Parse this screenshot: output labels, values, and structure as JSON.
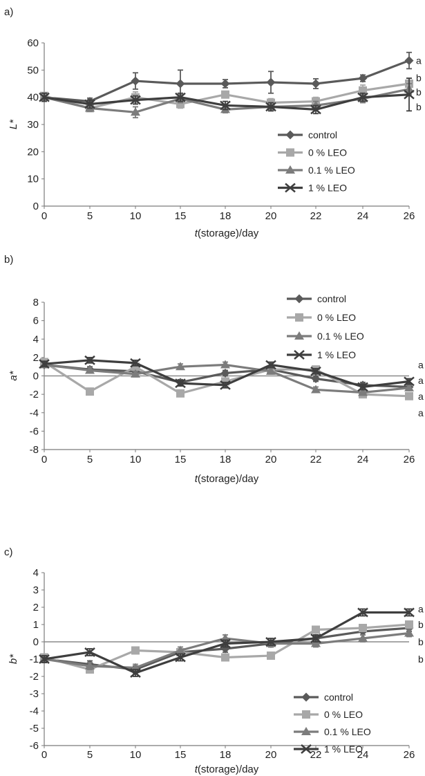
{
  "colors": {
    "control": "#5a5a5a",
    "leo0": "#a8a8a8",
    "leo01": "#7c7c7c",
    "leo1": "#3e3e3e",
    "axis": "#7a7a7a",
    "zero_line": "#8a8a8a"
  },
  "chart_data": [
    {
      "type": "line",
      "panel_label": "a)",
      "xlabel_italic": "t",
      "xlabel_rest": "(storage)/day",
      "ylabel": "L*",
      "x": [
        0,
        5,
        10,
        15,
        18,
        20,
        22,
        24,
        26
      ],
      "x_tick_labels": [
        "0",
        "5",
        "10",
        "15",
        "18",
        "20",
        "22",
        "24",
        "26"
      ],
      "ylim": [
        0,
        60
      ],
      "y_ticks": [
        0,
        10,
        20,
        30,
        40,
        50,
        60
      ],
      "zero_line": false,
      "grid": false,
      "legend_position": "lower-right",
      "series": [
        {
          "name": "control",
          "marker": "diamond",
          "color_key": "control",
          "values": [
            40,
            38.5,
            46,
            45,
            45,
            45.5,
            45,
            47,
            53.5
          ],
          "errors": [
            1.5,
            1.2,
            3,
            5,
            1.5,
            4,
            1.8,
            1.2,
            3
          ]
        },
        {
          "name": "0 % LEO",
          "marker": "square",
          "color_key": "leo0",
          "values": [
            40.5,
            36,
            40,
            37.5,
            41,
            38,
            38.5,
            42.5,
            45
          ],
          "errors": [
            1,
            1,
            2,
            1.5,
            1.2,
            1.5,
            1.5,
            2,
            2
          ]
        },
        {
          "name": "0.1 % LEO",
          "marker": "triangle",
          "color_key": "leo01",
          "values": [
            40,
            36,
            34.5,
            39.5,
            35.5,
            36.5,
            37,
            39.5,
            43
          ],
          "errors": [
            1.5,
            1.2,
            2,
            1.5,
            1.2,
            1.5,
            1.5,
            1.5,
            2
          ]
        },
        {
          "name": "1 % LEO",
          "marker": "x",
          "color_key": "leo1",
          "values": [
            40,
            37.5,
            39,
            40,
            37,
            36.5,
            35.5,
            40,
            41
          ],
          "errors": [
            1.5,
            1.5,
            1.5,
            1.5,
            1.5,
            1.5,
            1.5,
            1.5,
            6
          ]
        }
      ],
      "right_letters": [
        {
          "text": "a",
          "value": 53.5
        },
        {
          "text": "b",
          "value": 47.2
        },
        {
          "text": "b",
          "value": 42
        },
        {
          "text": "b",
          "value": 36.5
        }
      ]
    },
    {
      "type": "line",
      "panel_label": "b)",
      "xlabel_italic": "t",
      "xlabel_rest": "(storage)/day",
      "ylabel": "a*",
      "x": [
        0,
        5,
        10,
        15,
        18,
        20,
        22,
        24,
        26
      ],
      "x_tick_labels": [
        "0",
        "5",
        "10",
        "15",
        "18",
        "20",
        "22",
        "24",
        "26"
      ],
      "ylim": [
        -8,
        8
      ],
      "y_ticks": [
        -8,
        -6,
        -4,
        -2,
        0,
        2,
        4,
        6,
        8
      ],
      "zero_line": true,
      "grid": false,
      "legend_position": "upper-right",
      "series": [
        {
          "name": "control",
          "marker": "diamond",
          "color_key": "control",
          "values": [
            1.2,
            0.7,
            0.5,
            -0.7,
            0.3,
            0.7,
            -0.3,
            -1.0,
            -1.2
          ],
          "errors": [
            0.3,
            0.3,
            0.3,
            0.3,
            0.3,
            0.3,
            0.3,
            0.3,
            0.3
          ]
        },
        {
          "name": "0 % LEO",
          "marker": "square",
          "color_key": "leo0",
          "values": [
            1.5,
            -1.7,
            1.0,
            -1.9,
            -0.6,
            0.7,
            0.7,
            -2.0,
            -2.2
          ],
          "errors": [
            0.3,
            0.3,
            0.3,
            0.3,
            0.3,
            0.3,
            0.3,
            0.3,
            0.3
          ]
        },
        {
          "name": "0.1 % LEO",
          "marker": "triangle",
          "color_key": "leo01",
          "values": [
            1.2,
            0.6,
            0.2,
            1.0,
            1.2,
            0.5,
            -1.5,
            -1.8,
            -1.3
          ],
          "errors": [
            0.3,
            0.3,
            0.3,
            0.3,
            0.3,
            0.3,
            0.3,
            0.3,
            0.3
          ]
        },
        {
          "name": "1 % LEO",
          "marker": "x",
          "color_key": "leo1",
          "values": [
            1.3,
            1.7,
            1.4,
            -0.8,
            -1.0,
            1.2,
            0.5,
            -1.2,
            -0.6
          ],
          "errors": [
            0.3,
            0.3,
            0.3,
            0.3,
            0.3,
            0.3,
            0.3,
            0.3,
            0.3
          ]
        }
      ],
      "right_letters": [
        {
          "text": "a",
          "value": 1.2
        },
        {
          "text": "a",
          "value": -0.5
        },
        {
          "text": "a",
          "value": -2.2
        },
        {
          "text": "a",
          "value": -4.0
        }
      ]
    },
    {
      "type": "line",
      "panel_label": "c)",
      "xlabel_italic": "t",
      "xlabel_rest": "(storage)/day",
      "ylabel": "b*",
      "x": [
        0,
        5,
        10,
        15,
        18,
        20,
        22,
        24,
        26
      ],
      "x_tick_labels": [
        "0",
        "5",
        "10",
        "15",
        "18",
        "20",
        "22",
        "24",
        "26"
      ],
      "ylim": [
        -6,
        4
      ],
      "y_ticks": [
        -6,
        -5,
        -4,
        -3,
        -2,
        -1,
        0,
        1,
        2,
        3,
        4
      ],
      "zero_line": true,
      "grid": false,
      "legend_position": "lower-right",
      "series": [
        {
          "name": "control",
          "marker": "diamond",
          "color_key": "control",
          "values": [
            -1.0,
            -1.3,
            -1.6,
            -0.6,
            -0.4,
            -0.1,
            0.2,
            0.6,
            0.8
          ],
          "errors": [
            0.2,
            0.2,
            0.2,
            0.2,
            0.2,
            0.2,
            0.2,
            0.2,
            0.2
          ]
        },
        {
          "name": "0 % LEO",
          "marker": "square",
          "color_key": "leo0",
          "values": [
            -0.9,
            -1.6,
            -0.5,
            -0.6,
            -0.9,
            -0.8,
            0.7,
            0.8,
            1.0
          ],
          "errors": [
            0.2,
            0.2,
            0.2,
            0.2,
            0.2,
            0.2,
            0.2,
            0.2,
            0.2
          ]
        },
        {
          "name": "0.1 % LEO",
          "marker": "triangle",
          "color_key": "leo01",
          "values": [
            -1.0,
            -1.4,
            -1.5,
            -0.5,
            0.2,
            -0.1,
            -0.1,
            0.2,
            0.5
          ],
          "errors": [
            0.2,
            0.2,
            0.2,
            0.2,
            0.2,
            0.2,
            0.2,
            0.2,
            0.2
          ]
        },
        {
          "name": "1 % LEO",
          "marker": "x",
          "color_key": "leo1",
          "values": [
            -1.0,
            -0.6,
            -1.8,
            -0.9,
            -0.1,
            0.0,
            0.2,
            1.7,
            1.7
          ],
          "errors": [
            0.2,
            0.2,
            0.2,
            0.2,
            0.2,
            0.2,
            0.2,
            0.2,
            0.2
          ]
        }
      ],
      "right_letters": [
        {
          "text": "a",
          "value": 1.9
        },
        {
          "text": "b",
          "value": 1.0
        },
        {
          "text": "b",
          "value": 0.0
        },
        {
          "text": "b",
          "value": -1.0
        }
      ]
    }
  ]
}
